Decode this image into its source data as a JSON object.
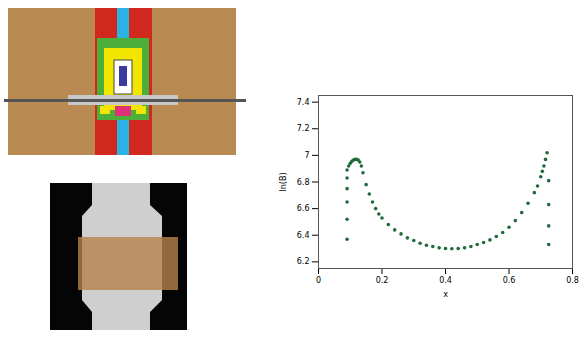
{
  "chart_data": {
    "type": "scatter",
    "x_label": "x",
    "y_label": "ln(B)",
    "xlim": [
      0,
      0.8
    ],
    "ylim": [
      6.15,
      7.45
    ],
    "xticks": [
      0,
      0.2,
      0.4,
      0.6,
      0.8
    ],
    "yticks": [
      6.2,
      6.4,
      6.6,
      6.8,
      7,
      7.2,
      7.4
    ],
    "x": [
      0.09,
      0.09,
      0.09,
      0.09,
      0.09,
      0.09,
      0.095,
      0.1,
      0.105,
      0.11,
      0.115,
      0.12,
      0.125,
      0.13,
      0.135,
      0.14,
      0.15,
      0.16,
      0.17,
      0.18,
      0.19,
      0.2,
      0.22,
      0.24,
      0.26,
      0.28,
      0.3,
      0.32,
      0.34,
      0.36,
      0.38,
      0.4,
      0.42,
      0.44,
      0.46,
      0.48,
      0.5,
      0.52,
      0.54,
      0.56,
      0.58,
      0.6,
      0.62,
      0.64,
      0.66,
      0.68,
      0.69,
      0.7,
      0.705,
      0.71,
      0.715,
      0.72,
      0.725,
      0.725,
      0.725,
      0.725
    ],
    "values": [
      6.37,
      6.52,
      6.65,
      6.75,
      6.83,
      6.89,
      6.92,
      6.94,
      6.955,
      6.965,
      6.97,
      6.97,
      6.965,
      6.95,
      6.92,
      6.87,
      6.78,
      6.71,
      6.65,
      6.6,
      6.56,
      6.53,
      6.48,
      6.44,
      6.41,
      6.38,
      6.36,
      6.34,
      6.325,
      6.315,
      6.305,
      6.3,
      6.298,
      6.3,
      6.305,
      6.315,
      6.33,
      6.345,
      6.365,
      6.39,
      6.42,
      6.46,
      6.51,
      6.57,
      6.64,
      6.72,
      6.77,
      6.84,
      6.88,
      6.92,
      6.97,
      7.02,
      6.81,
      6.63,
      6.47,
      6.33
    ],
    "color": "#1f6b3a",
    "marker": "circle",
    "grid": false
  }
}
